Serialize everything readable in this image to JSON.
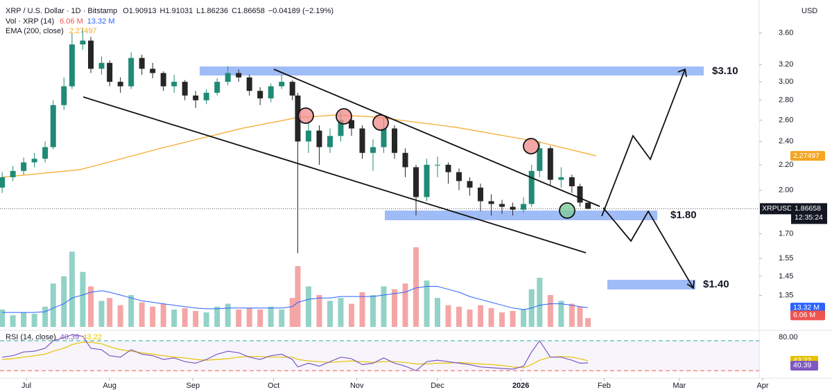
{
  "chart_data": {
    "type": "candlestick",
    "title": "XRP / U.S. Dollar · 1D · Bitstamp",
    "ohlc_labels": [
      "O1.90913",
      "H1.91031",
      "L1.86236",
      "C1.86658"
    ],
    "change_label": "−0.04189 (−2.19%)",
    "currency": "USD",
    "log_scale": true,
    "up_color": "#1f8a76",
    "down_color": "#262626",
    "x": [
      -9,
      -5,
      -1,
      3,
      7,
      10,
      14,
      17,
      21,
      24,
      28,
      31,
      35,
      39,
      43,
      47,
      51,
      55,
      59,
      63,
      67,
      71,
      75,
      79,
      83,
      87,
      91,
      95,
      99,
      101,
      105,
      109,
      113,
      117,
      121,
      125,
      129,
      133,
      137,
      141,
      145,
      149,
      153,
      157,
      161,
      165,
      169,
      173,
      177,
      181,
      185,
      188,
      191,
      195,
      199,
      203,
      206,
      209
    ],
    "open": [
      2.02,
      2.1,
      2.15,
      2.22,
      2.25,
      2.35,
      2.75,
      2.95,
      3.45,
      3.5,
      3.15,
      3.22,
      3.0,
      2.95,
      3.28,
      3.15,
      3.1,
      2.95,
      3.0,
      2.85,
      2.8,
      2.88,
      3.0,
      3.1,
      3.05,
      2.9,
      2.82,
      2.95,
      3.0,
      2.85,
      2.4,
      2.5,
      2.35,
      2.45,
      2.6,
      2.52,
      2.3,
      2.35,
      2.52,
      2.3,
      2.18,
      1.95,
      2.2,
      2.2,
      2.14,
      2.07,
      2.02,
      1.92,
      1.9,
      1.88,
      1.86,
      1.9,
      2.15,
      2.34,
      2.08,
      2.1,
      2.03,
      1.90913
    ],
    "high": [
      2.14,
      2.19,
      2.26,
      2.3,
      2.4,
      2.8,
      3.05,
      3.6,
      3.66,
      3.55,
      3.3,
      3.25,
      3.05,
      3.35,
      3.32,
      3.22,
      3.12,
      3.08,
      3.02,
      2.9,
      2.92,
      3.04,
      3.18,
      3.14,
      3.08,
      2.94,
      2.98,
      3.08,
      3.02,
      2.88,
      2.6,
      2.55,
      2.52,
      2.68,
      2.64,
      2.55,
      2.42,
      2.62,
      2.55,
      2.34,
      2.2,
      2.25,
      2.27,
      2.22,
      2.17,
      2.1,
      2.05,
      1.97,
      1.93,
      1.91,
      1.95,
      2.2,
      2.4,
      2.36,
      2.18,
      2.12,
      2.05,
      1.91031
    ],
    "low": [
      1.98,
      2.07,
      2.12,
      2.18,
      2.22,
      2.33,
      2.7,
      2.92,
      3.38,
      3.1,
      3.08,
      2.95,
      2.88,
      2.92,
      3.08,
      3.04,
      2.9,
      2.88,
      2.8,
      2.72,
      2.76,
      2.85,
      2.96,
      3.0,
      2.85,
      2.75,
      2.78,
      2.92,
      2.8,
      1.58,
      2.3,
      2.2,
      2.3,
      2.4,
      2.45,
      2.25,
      2.15,
      2.3,
      2.25,
      2.1,
      1.82,
      1.92,
      2.1,
      2.05,
      2.0,
      1.96,
      1.85,
      1.82,
      1.83,
      1.82,
      1.84,
      1.88,
      2.1,
      2.04,
      2.02,
      1.98,
      1.88,
      1.86236
    ],
    "close": [
      2.1,
      2.15,
      2.22,
      2.25,
      2.35,
      2.75,
      2.95,
      3.45,
      3.5,
      3.15,
      3.22,
      3.0,
      2.95,
      3.28,
      3.15,
      3.1,
      2.95,
      3.0,
      2.85,
      2.8,
      2.88,
      3.0,
      3.1,
      3.05,
      2.9,
      2.82,
      2.95,
      3.0,
      2.85,
      2.4,
      2.5,
      2.35,
      2.45,
      2.6,
      2.52,
      2.3,
      2.35,
      2.52,
      2.3,
      2.18,
      1.95,
      2.2,
      2.2,
      2.14,
      2.07,
      2.02,
      1.92,
      1.9,
      1.88,
      1.86,
      1.9,
      2.15,
      2.34,
      2.08,
      2.1,
      2.03,
      1.91,
      1.86658
    ],
    "xlim": [
      -9.8,
      272.7
    ],
    "xticks": [
      {
        "value": 0,
        "label": "Jul"
      },
      {
        "value": 31,
        "label": "Aug"
      },
      {
        "value": 62,
        "label": "Sep"
      },
      {
        "value": 92,
        "label": "Oct"
      },
      {
        "value": 123,
        "label": "Nov"
      },
      {
        "value": 153,
        "label": "Dec"
      },
      {
        "value": 184,
        "label": "2026"
      },
      {
        "value": 215,
        "label": "Feb"
      },
      {
        "value": 243,
        "label": "Mar"
      },
      {
        "value": 274,
        "label": "Apr"
      }
    ],
    "ylim": [
      1.2,
      3.99
    ],
    "yticks": [
      {
        "value": 3.6,
        "label": "3.60"
      },
      {
        "value": 3.2,
        "label": "3.20"
      },
      {
        "value": 3.0,
        "label": "3.00"
      },
      {
        "value": 2.8,
        "label": "2.80"
      },
      {
        "value": 2.6,
        "label": "2.60"
      },
      {
        "value": 2.4,
        "label": "2.40"
      },
      {
        "value": 2.2,
        "label": "2.20"
      },
      {
        "value": 2.0,
        "label": "2.00"
      },
      {
        "value": 1.7,
        "label": "1.70"
      },
      {
        "value": 1.55,
        "label": "1.55"
      },
      {
        "value": 1.45,
        "label": "1.45"
      },
      {
        "value": 1.35,
        "label": "1.35"
      }
    ],
    "ema": {
      "name": "EMA (200, close)",
      "color": "#f5a623",
      "x": [
        -9,
        20,
        50,
        80,
        100,
        115,
        130,
        160,
        190,
        212
      ],
      "values": [
        2.1,
        2.16,
        2.34,
        2.52,
        2.62,
        2.65,
        2.63,
        2.53,
        2.4,
        2.27497
      ],
      "last": 2.27497
    },
    "volume": {
      "name": "Vol · XRP (14)",
      "ylim": [
        0,
        56
      ],
      "up_color": "#93d2c7",
      "down_color": "#f4a6a6",
      "ma_color": "#2962ff",
      "values": [
        12,
        8,
        10,
        9,
        14,
        30,
        35,
        52,
        38,
        28,
        18,
        20,
        15,
        22,
        17,
        14,
        16,
        12,
        13,
        11,
        10,
        14,
        16,
        12,
        13,
        12,
        14,
        12,
        20,
        42,
        28,
        22,
        18,
        20,
        16,
        24,
        22,
        28,
        26,
        30,
        55,
        32,
        20,
        15,
        14,
        12,
        15,
        13,
        10,
        11,
        12,
        26,
        34,
        22,
        18,
        16,
        14,
        6.06
      ],
      "ma": [
        10,
        10,
        10,
        10,
        10.5,
        13,
        16,
        20,
        22,
        24,
        25,
        24,
        22,
        20,
        18,
        17,
        16,
        15,
        14,
        13,
        12.5,
        12.5,
        13,
        13,
        13,
        13,
        13,
        13,
        14,
        17,
        19,
        20,
        20,
        21,
        21,
        21,
        21,
        22,
        23,
        24,
        27,
        28,
        28,
        26,
        24,
        21,
        19,
        17,
        15,
        13,
        12,
        13,
        15,
        16,
        16,
        15,
        14,
        13.32
      ],
      "last_label": "6.06 M",
      "ma_last_label": "13.32 M"
    },
    "rsi": {
      "name": "RSI (14, close)",
      "color": "#7e57c2",
      "ma_color": "#e6c200",
      "ylim": [
        20,
        82
      ],
      "yticks": [
        {
          "value": 80,
          "label": "80.00"
        }
      ],
      "levels": [
        70,
        30
      ],
      "values": [
        48,
        50,
        55,
        56,
        60,
        70,
        74,
        78,
        76,
        60,
        58,
        50,
        48,
        58,
        52,
        50,
        45,
        47,
        42,
        40,
        45,
        52,
        56,
        54,
        48,
        45,
        50,
        52,
        45,
        35,
        40,
        36,
        42,
        48,
        46,
        38,
        40,
        47,
        40,
        36,
        30,
        42,
        44,
        42,
        40,
        38,
        35,
        34,
        33,
        32,
        36,
        55,
        70,
        48,
        48,
        44,
        40,
        40.39
      ],
      "ma": [
        45,
        46,
        48,
        50,
        52,
        56,
        60,
        65,
        68,
        68,
        66,
        62,
        58,
        56,
        54,
        52,
        50,
        48,
        47,
        45,
        44,
        45,
        46,
        48,
        49,
        49,
        48,
        48,
        48,
        45,
        43,
        42,
        41,
        42,
        43,
        42,
        41,
        42,
        42,
        41,
        39,
        39,
        40,
        40,
        41,
        40,
        39,
        38,
        37,
        35,
        34,
        38,
        44,
        48,
        49,
        48,
        46,
        43.22
      ],
      "last": 40.39,
      "ma_last": 43.22
    },
    "last_price": {
      "symbol": "XRPUSD",
      "value": 1.86658,
      "countdown": "12:35:24"
    },
    "annotations": [
      "$3.10",
      "$1.80",
      "$1.40"
    ]
  }
}
